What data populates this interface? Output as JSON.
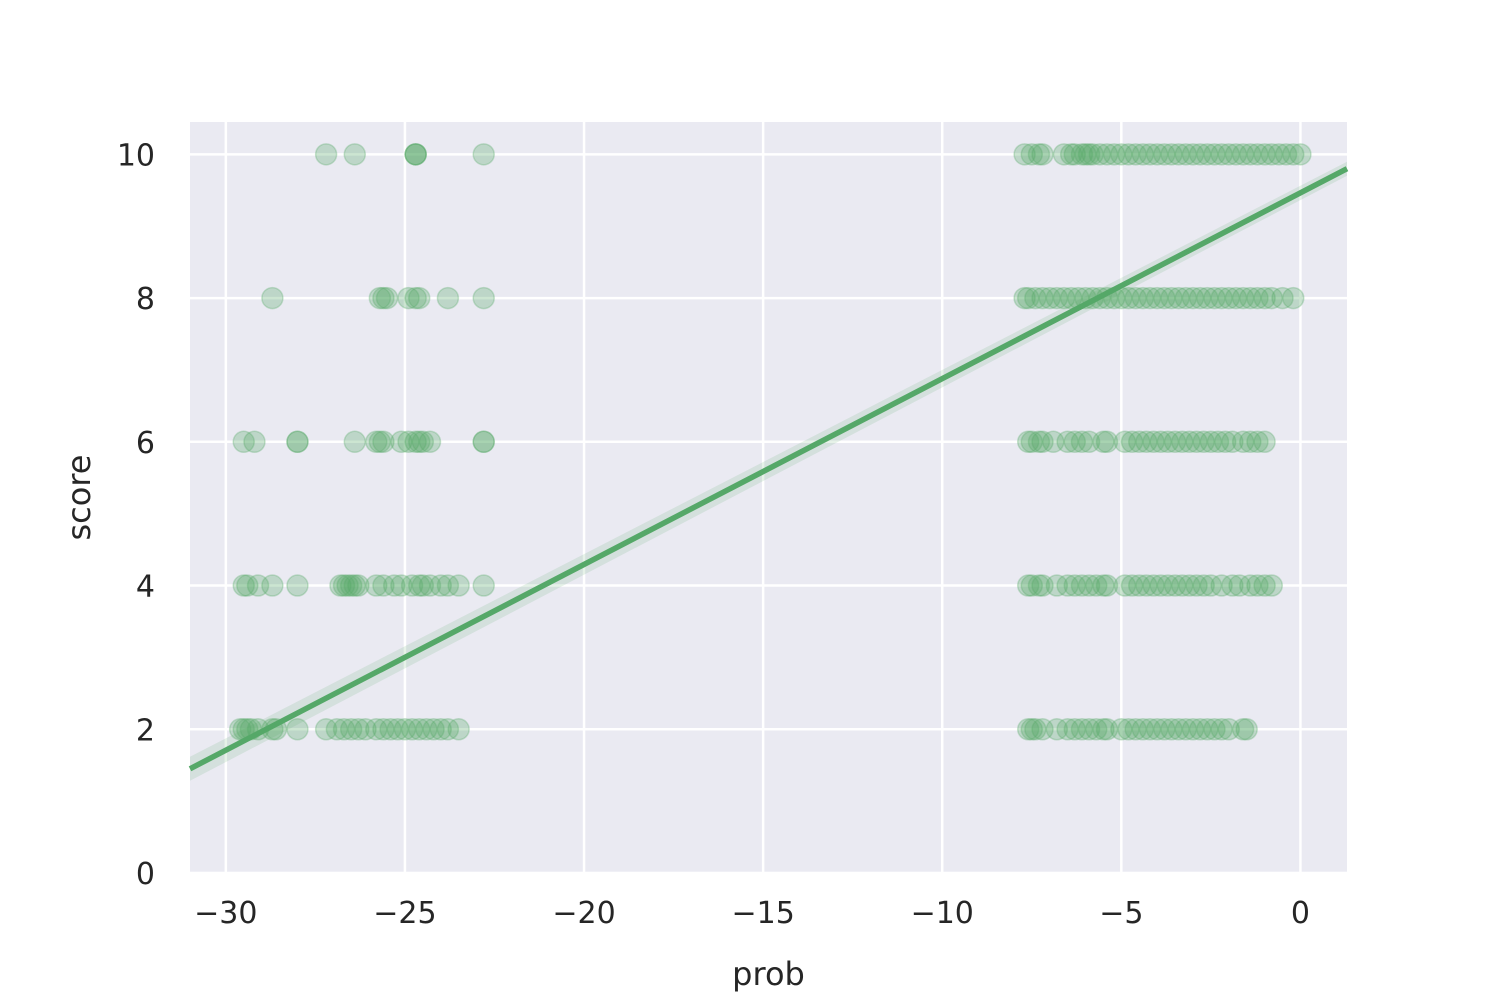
{
  "chart_data": {
    "type": "scatter",
    "title": "",
    "xlabel": "prob",
    "ylabel": "score",
    "xlim": [
      -31,
      1.3
    ],
    "ylim": [
      0,
      10.45
    ],
    "x_ticks": [
      -30,
      -25,
      -20,
      -15,
      -10,
      -5,
      0
    ],
    "x_tick_labels": [
      "−30",
      "−25",
      "−20",
      "−15",
      "−10",
      "−5",
      "0"
    ],
    "y_ticks": [
      0,
      2,
      4,
      6,
      8,
      10
    ],
    "y_tick_labels": [
      "0",
      "2",
      "4",
      "6",
      "8",
      "10"
    ],
    "grid": true,
    "background_color": "#eaeaf2",
    "point_color": "#55a868",
    "point_alpha": 0.3,
    "regression_line": {
      "x": [
        -31,
        1.3
      ],
      "y": [
        1.45,
        9.8
      ]
    },
    "series": [
      {
        "y": 10,
        "x": [
          -27.2,
          -26.4,
          -24.7,
          -24.7,
          -24.7,
          -22.8,
          -7.7,
          -7.5,
          -7.3,
          -7.2,
          -6.6,
          -6.4,
          -6.3,
          -6.1,
          -6.0,
          -5.9,
          -5.8,
          -5.6,
          -5.4,
          -5.2,
          -5.0,
          -4.8,
          -4.6,
          -4.4,
          -4.2,
          -4.0,
          -3.8,
          -3.6,
          -3.4,
          -3.2,
          -3.0,
          -2.8,
          -2.6,
          -2.4,
          -2.2,
          -2.0,
          -1.8,
          -1.6,
          -1.4,
          -1.2,
          -1.0,
          -0.8,
          -0.6,
          -0.4,
          -0.2,
          0.0
        ]
      },
      {
        "y": 8,
        "x": [
          -28.7,
          -25.7,
          -25.6,
          -25.5,
          -24.9,
          -24.7,
          -24.6,
          -23.8,
          -22.8,
          -7.7,
          -7.6,
          -7.4,
          -7.2,
          -7.0,
          -6.8,
          -6.6,
          -6.4,
          -6.2,
          -6.0,
          -5.8,
          -5.6,
          -5.4,
          -5.2,
          -5.0,
          -4.8,
          -4.6,
          -4.4,
          -4.2,
          -4.0,
          -3.8,
          -3.6,
          -3.4,
          -3.2,
          -3.0,
          -2.8,
          -2.6,
          -2.4,
          -2.2,
          -2.0,
          -1.8,
          -1.6,
          -1.4,
          -1.2,
          -1.0,
          -0.8,
          -0.5,
          -0.2
        ]
      },
      {
        "y": 6,
        "x": [
          -29.5,
          -29.2,
          -28.0,
          -28.0,
          -26.4,
          -25.8,
          -25.7,
          -25.6,
          -25.1,
          -24.9,
          -24.7,
          -24.6,
          -24.5,
          -24.3,
          -22.8,
          -22.8,
          -7.6,
          -7.5,
          -7.3,
          -7.2,
          -6.9,
          -6.5,
          -6.3,
          -6.1,
          -5.9,
          -5.5,
          -5.4,
          -4.9,
          -4.7,
          -4.5,
          -4.3,
          -4.1,
          -3.9,
          -3.7,
          -3.5,
          -3.3,
          -3.1,
          -2.9,
          -2.7,
          -2.5,
          -2.3,
          -2.1,
          -1.9,
          -1.6,
          -1.4,
          -1.2,
          -1.0
        ]
      },
      {
        "y": 4,
        "x": [
          -29.5,
          -29.4,
          -29.1,
          -28.7,
          -28.0,
          -26.8,
          -26.7,
          -26.6,
          -26.5,
          -26.4,
          -26.3,
          -25.8,
          -25.6,
          -25.3,
          -25.1,
          -24.8,
          -24.6,
          -24.5,
          -24.3,
          -24.0,
          -23.8,
          -23.5,
          -22.8,
          -7.6,
          -7.5,
          -7.3,
          -7.2,
          -6.8,
          -6.5,
          -6.3,
          -6.1,
          -5.9,
          -5.7,
          -5.5,
          -5.4,
          -4.9,
          -4.7,
          -4.5,
          -4.3,
          -4.1,
          -3.9,
          -3.7,
          -3.5,
          -3.3,
          -3.1,
          -2.9,
          -2.7,
          -2.5,
          -2.2,
          -1.9,
          -1.7,
          -1.4,
          -1.2,
          -1.0,
          -0.8
        ]
      },
      {
        "y": 2,
        "x": [
          -29.6,
          -29.5,
          -29.4,
          -29.3,
          -29.1,
          -28.7,
          -28.6,
          -28.0,
          -27.2,
          -26.9,
          -26.7,
          -26.5,
          -26.3,
          -26.1,
          -25.8,
          -25.6,
          -25.4,
          -25.2,
          -25.0,
          -24.8,
          -24.6,
          -24.4,
          -24.2,
          -24.0,
          -23.8,
          -23.5,
          -7.6,
          -7.5,
          -7.4,
          -7.2,
          -6.8,
          -6.5,
          -6.3,
          -6.1,
          -5.9,
          -5.7,
          -5.5,
          -5.4,
          -5.0,
          -4.8,
          -4.6,
          -4.4,
          -4.2,
          -4.0,
          -3.8,
          -3.6,
          -3.4,
          -3.2,
          -3.0,
          -2.8,
          -2.6,
          -2.4,
          -2.2,
          -2.0,
          -1.6,
          -1.5
        ]
      }
    ]
  }
}
